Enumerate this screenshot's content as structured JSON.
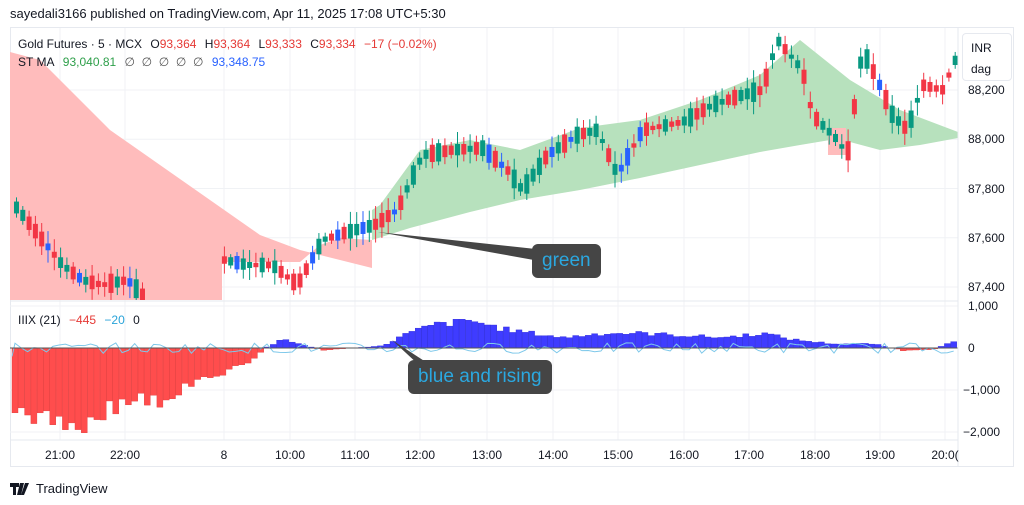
{
  "publisher_line": "sayedali3166 published on TradingView.com, Apr 11, 2025 17:08 UTC+5:30",
  "legend": {
    "symbol": "Gold Futures · 5 · MCX",
    "open_label": "O",
    "open": "93,364",
    "high_label": "H",
    "high": "93,364",
    "low_label": "L",
    "low": "93,333",
    "close_label": "C",
    "close": "93,334",
    "change": "−17 (−0.02%)",
    "ma_name": "ST MA",
    "ma_value1": "93,040.81",
    "ma_nulls": "∅  ∅  ∅  ∅  ∅",
    "ma_value2": "93,348.75",
    "ind_name": "IIIX (21)",
    "ind_value1": "−445",
    "ind_value2": "−20",
    "ind_value3": "0"
  },
  "unit_box": {
    "currency": "INR",
    "unit": "dag"
  },
  "annotations": {
    "callout1": "green",
    "callout2": "blue and rising"
  },
  "logo": {
    "text": "TradingView"
  },
  "colors": {
    "up": "#089981",
    "down": "#f23645",
    "neutral": "#2962ff",
    "ma_bull_fill": "#b7e1bd",
    "ma_bear_fill": "#ffbcbc",
    "hist_pos": "#3f3cff",
    "hist_neg": "#ff4d4d",
    "signal": "#7ec8ea"
  },
  "chart_data": [
    {
      "type": "candlestick",
      "title": "Gold Futures · 5 · MCX",
      "ylabel": "INR / dag",
      "y_ticks": [
        "88,200",
        "88,000",
        "87,800",
        "87,600",
        "87,400"
      ],
      "y_tick_values": [
        88200,
        88000,
        87800,
        87600,
        87400
      ],
      "ylim": [
        87350,
        88420
      ],
      "x_ticks": [
        "21:00",
        "22:00",
        "8",
        "10:00",
        "11:00",
        "12:00",
        "13:00",
        "14:00",
        "15:00",
        "16:00",
        "17:00",
        "18:00",
        "19:00",
        "20:0("
      ],
      "ohlc_summary": {
        "open": 93364,
        "high": 93364,
        "low": 93333,
        "close": 93334,
        "change": -17,
        "change_pct": -0.02
      },
      "overlay": {
        "name": "ST MA",
        "value1": 93040.81,
        "value2": 93348.75,
        "fill_bull": "green",
        "fill_bear": "red"
      },
      "grid": true
    },
    {
      "type": "bar",
      "title": "IIIX (21)",
      "values_shown": [
        -445,
        -20,
        0
      ],
      "y_ticks": [
        "1,000",
        "0",
        "−1,000",
        "−2,000"
      ],
      "y_tick_values": [
        1000,
        0,
        -1000,
        -2000
      ],
      "ylim": [
        -2100,
        1000
      ],
      "series": [
        {
          "name": "histogram",
          "color_pos": "blue",
          "color_neg": "red"
        },
        {
          "name": "signal",
          "color": "light blue"
        }
      ],
      "grid": true
    }
  ]
}
